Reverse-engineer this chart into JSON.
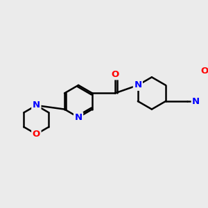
{
  "bg_color": "#ebebeb",
  "bond_color": "#000000",
  "N_color": "#0000ff",
  "O_color": "#ff0000",
  "line_width": 1.8,
  "figsize": [
    3.0,
    3.0
  ],
  "dpi": 100,
  "font_size_atom": 9.5,
  "xlim": [
    -2.8,
    4.2
  ],
  "ylim": [
    -1.9,
    2.1
  ]
}
